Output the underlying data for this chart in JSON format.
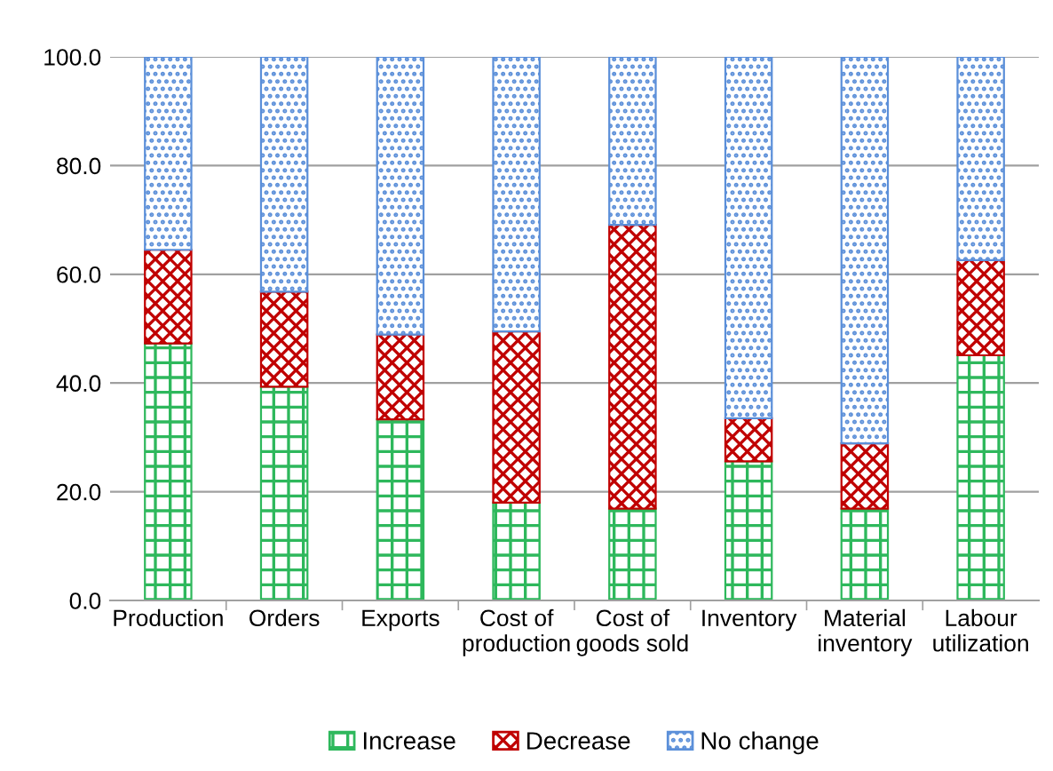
{
  "chart_data": {
    "type": "bar",
    "stacked": true,
    "categories": [
      "Production",
      "Orders",
      "Exports",
      "Cost of\nproduction",
      "Cost of\ngoods sold",
      "Inventory",
      "Material\ninventory",
      "Labour\nutilization"
    ],
    "series": [
      {
        "name": "Increase",
        "color": "#2eb85c",
        "values": [
          47.3,
          39.3,
          33.3,
          18.0,
          16.9,
          25.6,
          16.9,
          45.1
        ]
      },
      {
        "name": "Decrease",
        "color": "#c00000",
        "values": [
          17.2,
          17.5,
          15.6,
          31.5,
          52.2,
          7.9,
          12.0,
          17.5
        ]
      },
      {
        "name": "No change",
        "color": "#5b8fd9",
        "values": [
          35.5,
          43.2,
          51.1,
          50.5,
          30.9,
          66.5,
          71.1,
          37.4
        ]
      }
    ],
    "ylim": [
      0,
      100
    ],
    "yticks": [
      {
        "value": 0,
        "label": "0.0"
      },
      {
        "value": 20,
        "label": "20.0"
      },
      {
        "value": 40,
        "label": "40.0"
      },
      {
        "value": 60,
        "label": "60.0"
      },
      {
        "value": 80,
        "label": "80.0"
      },
      {
        "value": 100,
        "label": "100.0"
      }
    ],
    "grid": "y",
    "legend": "bottom"
  }
}
